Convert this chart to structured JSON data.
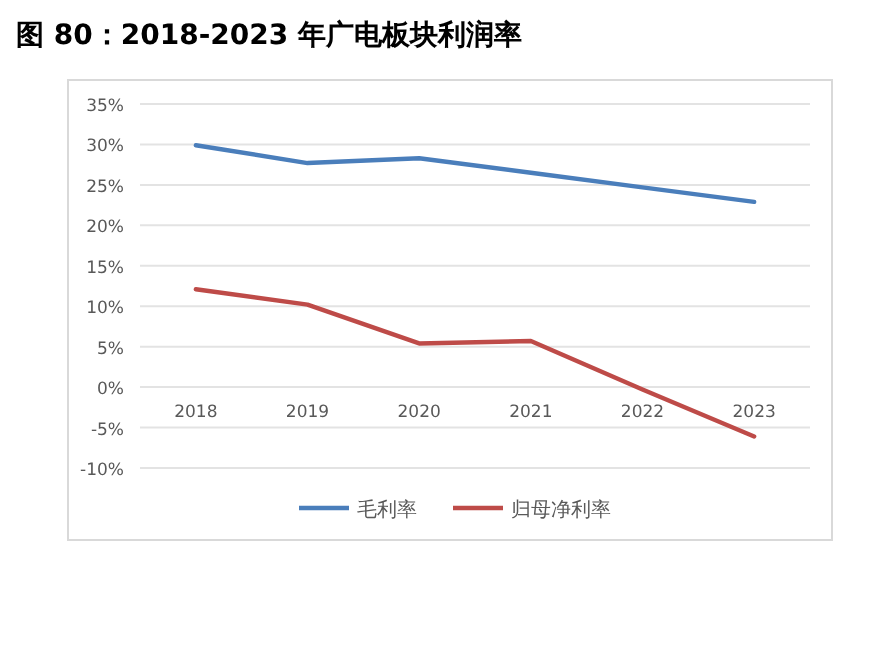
{
  "chart_data": {
    "type": "line",
    "title": "图 80：2018-2023 年广电板块利润率",
    "categories": [
      "2018",
      "2019",
      "2020",
      "2021",
      "2022",
      "2023"
    ],
    "series": [
      {
        "name": "毛利率",
        "color": "#4a7ebb",
        "values": [
          29.9,
          27.7,
          28.3,
          26.5,
          24.7,
          22.9
        ]
      },
      {
        "name": "归母净利率",
        "color": "#be4b48",
        "values": [
          12.1,
          10.2,
          5.4,
          5.7,
          -0.3,
          -6.1
        ]
      }
    ],
    "ylim": [
      -10,
      35
    ],
    "yticks": [
      {
        "value": 35,
        "label": "35%"
      },
      {
        "value": 30,
        "label": "30%"
      },
      {
        "value": 25,
        "label": "25%"
      },
      {
        "value": 20,
        "label": "20%"
      },
      {
        "value": 15,
        "label": "15%"
      },
      {
        "value": 10,
        "label": "10%"
      },
      {
        "value": 5,
        "label": "5%"
      },
      {
        "value": 0,
        "label": "0%"
      },
      {
        "value": -5,
        "label": "-5%"
      },
      {
        "value": -10,
        "label": "-10%"
      }
    ],
    "grid": "y",
    "legend": "bottom",
    "marker": "none",
    "line_style": "solid"
  }
}
